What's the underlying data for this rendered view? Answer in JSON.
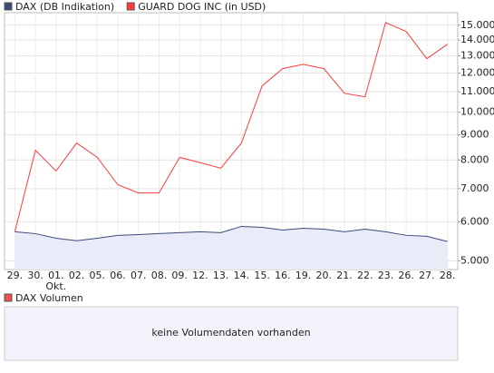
{
  "chart_data": {
    "type": "line",
    "log_scale": true,
    "grid": true,
    "categories": [
      "29.",
      "30.",
      "01.",
      "02.",
      "05.",
      "06.",
      "07.",
      "08.",
      "09.",
      "12.",
      "13.",
      "14.",
      "15.",
      "16.",
      "19.",
      "20.",
      "21.",
      "22.",
      "23.",
      "26.",
      "27.",
      "28."
    ],
    "category_sublabels": [
      null,
      null,
      "Okt.",
      null,
      null,
      null,
      null,
      null,
      null,
      null,
      null,
      null,
      null,
      null,
      null,
      null,
      null,
      null,
      null,
      null,
      null,
      null
    ],
    "series": [
      {
        "name": "DAX (DB Indikation)",
        "color": "#3b4a78",
        "area": true,
        "values": [
          5725,
          5675,
          5555,
          5490,
          5555,
          5630,
          5650,
          5675,
          5700,
          5725,
          5700,
          5870,
          5845,
          5770,
          5820,
          5795,
          5725,
          5795,
          5725,
          5630,
          5605,
          5470
        ]
      },
      {
        "name": "GUARD DOG INC (in USD)",
        "color": "#ff3b3b",
        "area": false,
        "values": [
          5725,
          8370,
          7600,
          8660,
          8100,
          7130,
          6860,
          6860,
          8100,
          7900,
          7700,
          8660,
          11300,
          12250,
          12500,
          12250,
          10920,
          10740,
          15190,
          14560,
          12830,
          13730
        ]
      }
    ],
    "ylim": [
      4800,
      15900
    ],
    "yticks": [
      {
        "value": 5000,
        "label": "5.000"
      },
      {
        "value": 6000,
        "label": "6.000"
      },
      {
        "value": 7000,
        "label": "7.000"
      },
      {
        "value": 8000,
        "label": "8.000"
      },
      {
        "value": 9000,
        "label": "9.000"
      },
      {
        "value": 10000,
        "label": "10.000"
      },
      {
        "value": 11000,
        "label": "11.000"
      },
      {
        "value": 12000,
        "label": "12.000"
      },
      {
        "value": 13000,
        "label": "13.000"
      },
      {
        "value": 14000,
        "label": "14.000"
      },
      {
        "value": 15000,
        "label": "15.000"
      }
    ]
  },
  "volume_panel": {
    "legend": "DAX Volumen",
    "message": "keine Volumendaten vorhanden"
  }
}
